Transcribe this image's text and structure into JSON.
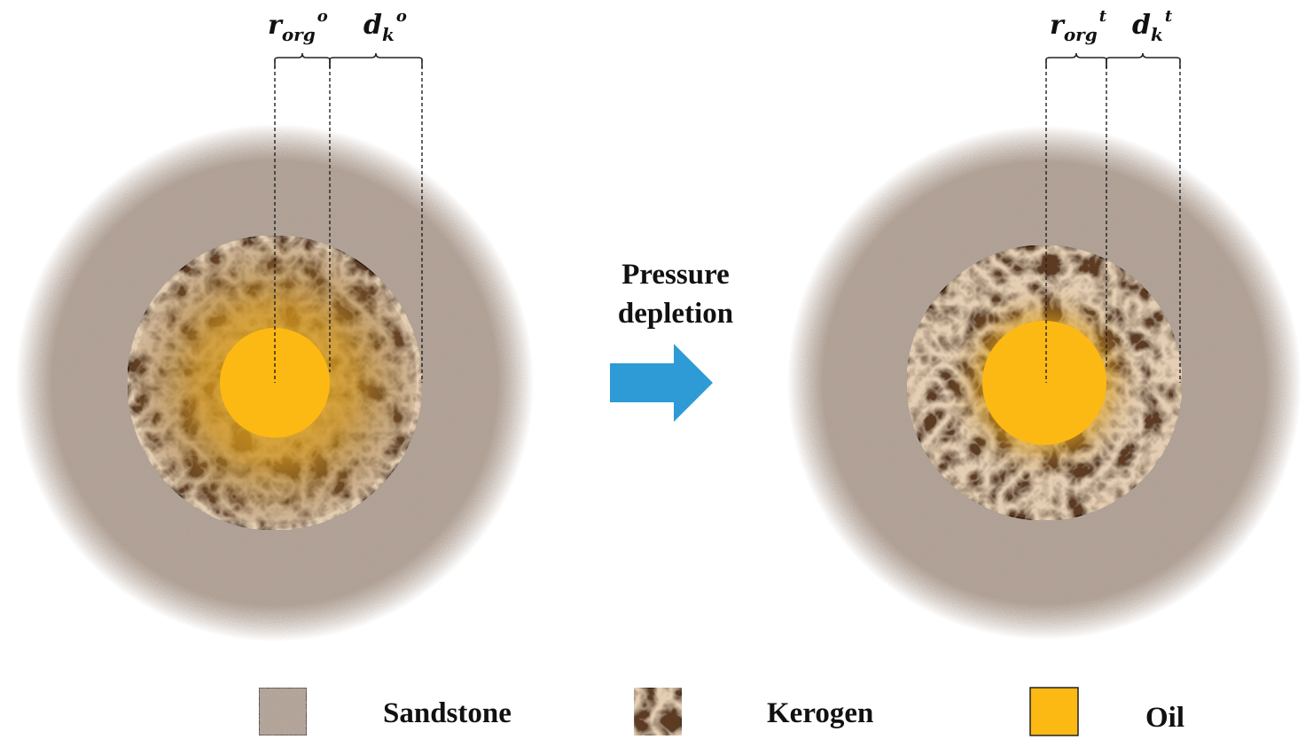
{
  "left_state": {
    "radius_label": {
      "base": "r",
      "sub": "org",
      "sup": "o"
    },
    "thickness_label": {
      "base": "d",
      "sub": "k",
      "sup": "o"
    }
  },
  "right_state": {
    "radius_label": {
      "base": "r",
      "sub": "org",
      "sup": "t"
    },
    "thickness_label": {
      "base": "d",
      "sub": "k",
      "sup": "t"
    }
  },
  "process_arrow": {
    "line1": "Pressure",
    "line2": "depletion",
    "color": "#2E9BD6"
  },
  "legend": {
    "items": [
      {
        "label": "Sandstone",
        "color": "#B7A79C"
      },
      {
        "label": "Kerogen",
        "color": "#5B3A24"
      },
      {
        "label": "Oil",
        "color": "#FDB913"
      }
    ]
  },
  "colors": {
    "sandstone": "#B3A397",
    "kerogen": "#5B3A24",
    "oil": "#FDB913"
  }
}
